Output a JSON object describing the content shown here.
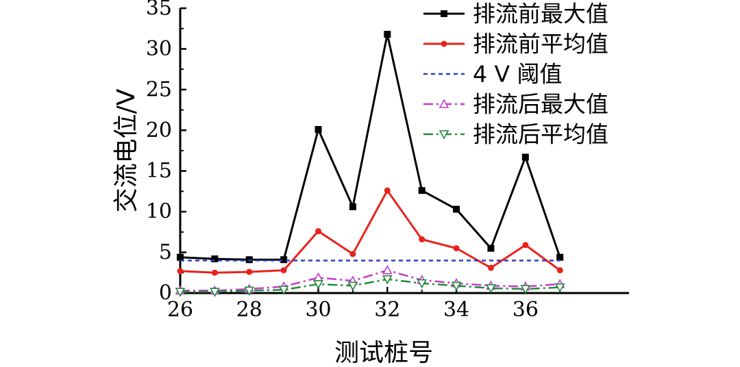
{
  "chart_data": {
    "type": "line",
    "xlabel": "测试桩号",
    "ylabel": "交流电位/V",
    "xlim": [
      26,
      39
    ],
    "ylim": [
      0,
      35
    ],
    "xticks": [
      26,
      28,
      30,
      32,
      34,
      36
    ],
    "yticks": [
      0,
      5,
      10,
      15,
      20,
      25,
      30,
      35
    ],
    "legend_position": "top-right",
    "grid": false,
    "x": [
      26,
      27,
      28,
      29,
      30,
      31,
      32,
      33,
      34,
      35,
      36,
      37
    ],
    "series": [
      {
        "name": "排流前最大值",
        "color": "#000000",
        "line": "solid",
        "marker": "square",
        "values": [
          4.4,
          4.2,
          4.1,
          4.1,
          20.1,
          10.6,
          31.8,
          12.6,
          10.3,
          5.5,
          16.7,
          4.4
        ]
      },
      {
        "name": "排流前平均值",
        "color": "#e8231b",
        "line": "solid",
        "marker": "circle",
        "values": [
          2.7,
          2.5,
          2.6,
          2.8,
          7.6,
          4.8,
          12.6,
          6.6,
          5.5,
          3.1,
          5.9,
          2.8
        ]
      },
      {
        "name": "4 V 阈值",
        "color": "#2b3fbf",
        "line": "dotted",
        "marker": "none",
        "values": [
          4,
          4,
          4,
          4,
          4,
          4,
          4,
          4,
          4,
          4,
          4,
          4
        ]
      },
      {
        "name": "排流后最大值",
        "color": "#c23ac8",
        "line": "dashdot",
        "marker": "triangle-up",
        "values": [
          0.3,
          0.3,
          0.5,
          0.8,
          1.9,
          1.5,
          2.8,
          1.6,
          1.2,
          0.9,
          0.8,
          1.1
        ]
      },
      {
        "name": "排流后平均值",
        "color": "#1f8a3a",
        "line": "dashdot",
        "marker": "triangle-down",
        "values": [
          0.15,
          0.15,
          0.3,
          0.4,
          1.1,
          0.9,
          1.7,
          1.2,
          0.9,
          0.6,
          0.5,
          0.7
        ]
      }
    ]
  }
}
